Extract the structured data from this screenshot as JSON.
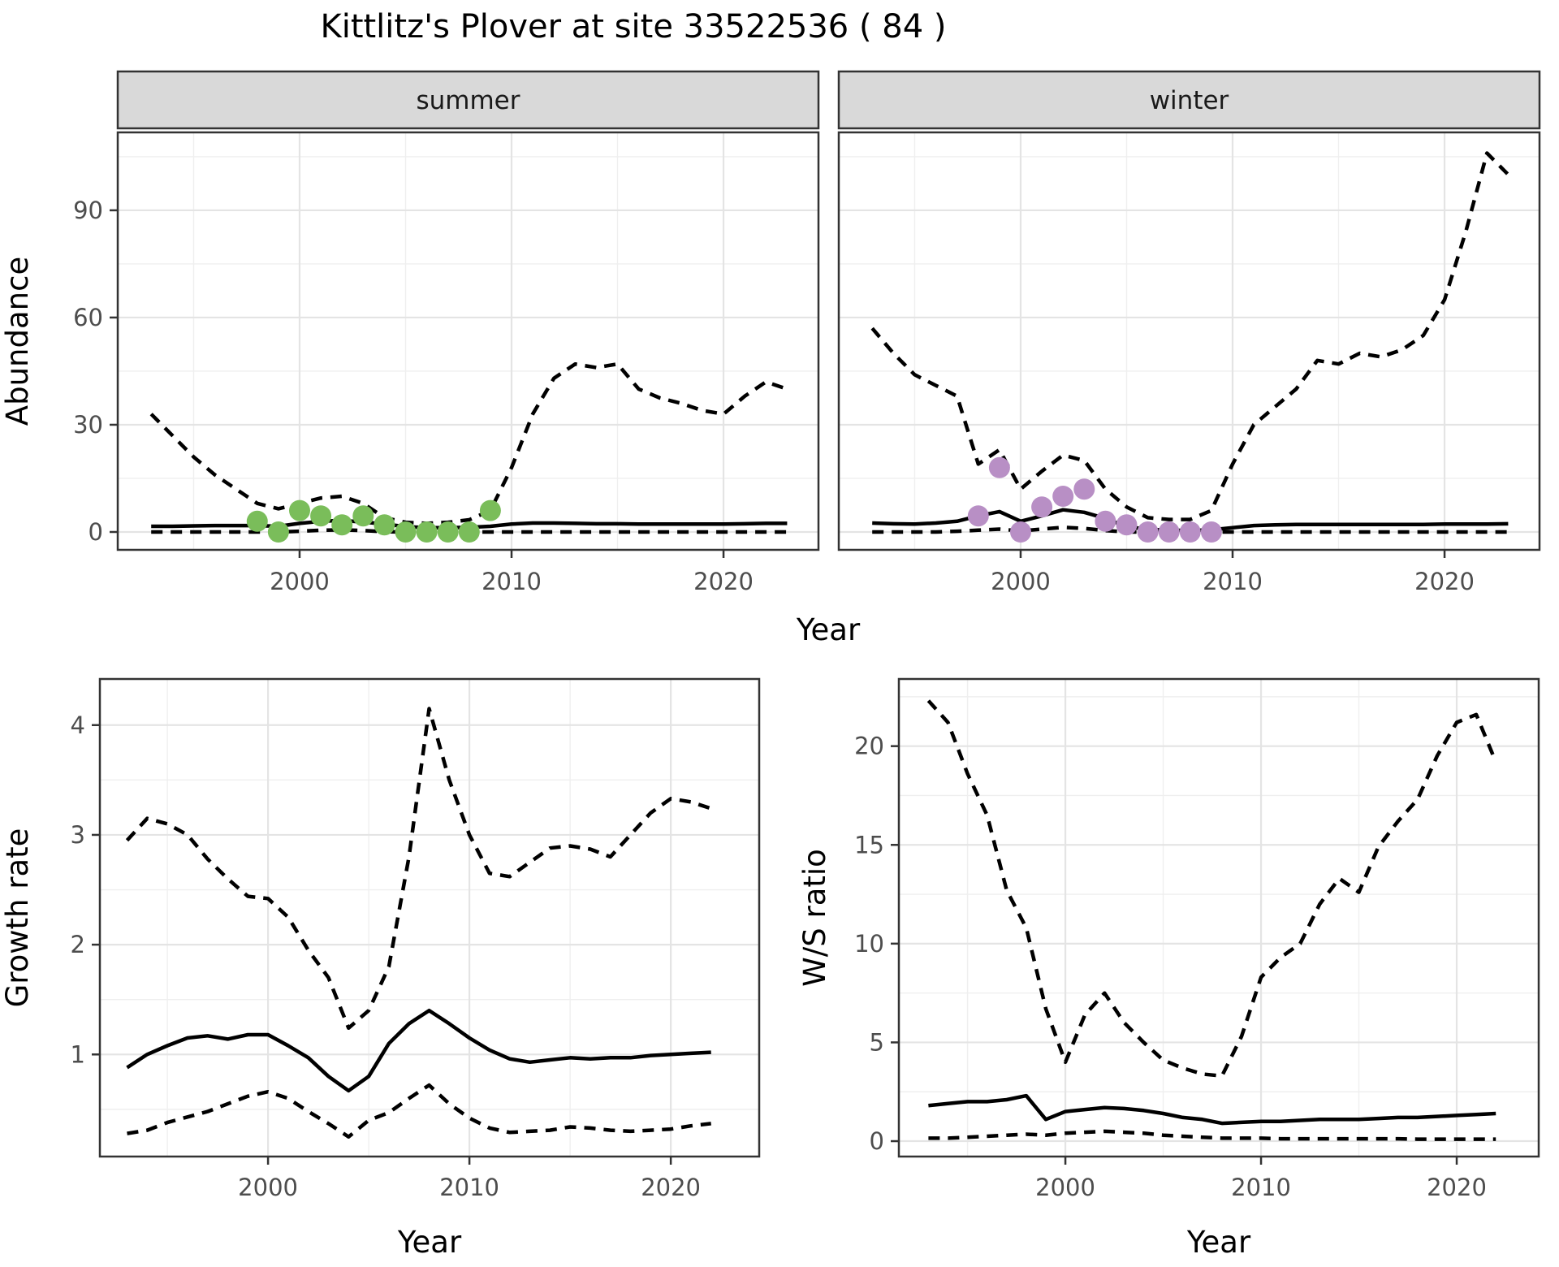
{
  "title": "Kittlitz's Plover at site 33522536 ( 84 )",
  "axes": {
    "year_label": "Year",
    "abundance_label": "Abundance",
    "growth_label": "Growth rate",
    "ws_label": "W/S ratio"
  },
  "facets": {
    "summer": "summer",
    "winter": "winter"
  },
  "colors": {
    "summer_dot": "#7ABD5A",
    "winter_dot": "#B88FC5",
    "line": "#000000",
    "strip_bg": "#D9D9D9",
    "panel_border": "#333333",
    "grid_major": "#E4E4E4",
    "grid_minor": "#EFEFEF",
    "axis_text": "#4D4D4D",
    "background": "#FFFFFF"
  },
  "chart_data": [
    {
      "type": "line",
      "panel": "abundance-summer",
      "facet_label": "summer",
      "xlabel": "Year",
      "ylabel": "Abundance",
      "xlim": [
        1991.42,
        2024.48
      ],
      "ylim": [
        -5,
        111.8
      ],
      "x_ticks": [
        2000,
        2010,
        2020
      ],
      "x_minor": [
        1995,
        2005,
        2015
      ],
      "y_ticks": [
        0,
        30,
        60,
        90
      ],
      "y_minor": [
        15,
        45,
        75,
        105
      ],
      "y_ticks_visible": true,
      "x": [
        1993,
        1994,
        1995,
        1996,
        1997,
        1998,
        1999,
        2000,
        2001,
        2002,
        2003,
        2004,
        2005,
        2006,
        2007,
        2008,
        2009,
        2010,
        2011,
        2012,
        2013,
        2014,
        2015,
        2016,
        2017,
        2018,
        2019,
        2020,
        2021,
        2022,
        2023
      ],
      "series": [
        {
          "name": "upper_95ci",
          "style": "dashed",
          "values": [
            33,
            27,
            21,
            16,
            12,
            8,
            6.5,
            8,
            9.5,
            10,
            8,
            4,
            2.7,
            2.4,
            2.7,
            3.4,
            6,
            18,
            33,
            43,
            47,
            46,
            47,
            40,
            37.5,
            36,
            34,
            33,
            38,
            42,
            40
          ]
        },
        {
          "name": "median_estimate",
          "style": "solid",
          "values": [
            1.6,
            1.6,
            1.7,
            1.8,
            1.8,
            1.8,
            1.6,
            2.4,
            3.0,
            3.2,
            2.8,
            2.2,
            1.5,
            1.2,
            1.2,
            1.3,
            1.6,
            2.2,
            2.5,
            2.5,
            2.4,
            2.3,
            2.3,
            2.2,
            2.2,
            2.2,
            2.2,
            2.2,
            2.3,
            2.4,
            2.4
          ]
        },
        {
          "name": "lower_95ci",
          "style": "dashed",
          "values": [
            0,
            0,
            0,
            0,
            0,
            0,
            0,
            0.2,
            0.5,
            0.6,
            0.4,
            0.1,
            0,
            0,
            0,
            0,
            0,
            0,
            0,
            0,
            0,
            0,
            0,
            0,
            0,
            0,
            0,
            0,
            0,
            0,
            0
          ]
        }
      ],
      "points": {
        "name": "observed-count-summer",
        "color_key": "summer_dot",
        "x": [
          1998,
          1999,
          2000,
          2001,
          2002,
          2003,
          2004,
          2005,
          2006,
          2007,
          2008,
          2009
        ],
        "values": [
          3,
          0,
          6,
          4.5,
          2,
          4.5,
          2,
          0,
          0,
          0,
          0,
          6
        ]
      }
    },
    {
      "type": "line",
      "panel": "abundance-winter",
      "facet_label": "winter",
      "xlabel": "Year",
      "ylabel": "Abundance",
      "xlim": [
        1991.42,
        2024.48
      ],
      "ylim": [
        -5,
        111.8
      ],
      "x_ticks": [
        2000,
        2010,
        2020
      ],
      "x_minor": [
        1995,
        2005,
        2015
      ],
      "y_ticks": [
        0,
        30,
        60,
        90
      ],
      "y_minor": [
        15,
        45,
        75,
        105
      ],
      "y_ticks_visible": false,
      "x": [
        1993,
        1994,
        1995,
        1996,
        1997,
        1998,
        1999,
        2000,
        2001,
        2002,
        2003,
        2004,
        2005,
        2006,
        2007,
        2008,
        2009,
        2010,
        2011,
        2012,
        2013,
        2014,
        2015,
        2016,
        2017,
        2018,
        2019,
        2020,
        2021,
        2022,
        2023
      ],
      "series": [
        {
          "name": "upper_95ci",
          "style": "dashed",
          "values": [
            57,
            50,
            44,
            41,
            38,
            19,
            23,
            12,
            17,
            21.5,
            20,
            12,
            7,
            4,
            3.5,
            3.5,
            6,
            19,
            30,
            35,
            40,
            48,
            47,
            50,
            49,
            51,
            55,
            65,
            84,
            106,
            100
          ]
        },
        {
          "name": "median_estimate",
          "style": "solid",
          "values": [
            2.5,
            2.3,
            2.2,
            2.5,
            3.0,
            4.5,
            5.7,
            3.0,
            4.5,
            6.2,
            5.5,
            3.8,
            1.5,
            0.7,
            0.5,
            0.4,
            0.6,
            1.2,
            1.8,
            2.0,
            2.1,
            2.1,
            2.1,
            2.1,
            2.1,
            2.1,
            2.1,
            2.2,
            2.2,
            2.2,
            2.3
          ]
        },
        {
          "name": "lower_95ci",
          "style": "dashed",
          "values": [
            0,
            0,
            0,
            0,
            0.2,
            0.5,
            0.8,
            0.3,
            0.8,
            1.3,
            1.0,
            0.4,
            0,
            0,
            0,
            0,
            0,
            0,
            0,
            0,
            0,
            0,
            0,
            0,
            0,
            0,
            0,
            0,
            0,
            0,
            0
          ]
        }
      ],
      "points": {
        "name": "observed-count-winter",
        "color_key": "winter_dot",
        "x": [
          1998,
          1999,
          2000,
          2001,
          2002,
          2003,
          2004,
          2005,
          2006,
          2007,
          2008,
          2009
        ],
        "values": [
          4.5,
          18,
          0,
          7,
          10,
          12,
          3,
          2,
          0,
          0,
          0,
          0
        ]
      }
    },
    {
      "type": "line",
      "panel": "growth-rate",
      "facet_label": "",
      "xlabel": "Year",
      "ylabel": "Growth rate",
      "xlim": [
        1991.65,
        2024.39
      ],
      "ylim": [
        0.07,
        4.42
      ],
      "x_ticks": [
        2000,
        2010,
        2020
      ],
      "x_minor": [
        1995,
        2005,
        2015
      ],
      "y_ticks": [
        1,
        2,
        3,
        4
      ],
      "y_minor": [
        0.5,
        1.5,
        2.5,
        3.5
      ],
      "y_ticks_visible": true,
      "x": [
        1993,
        1994,
        1995,
        1996,
        1997,
        1998,
        1999,
        2000,
        2001,
        2002,
        2003,
        2004,
        2005,
        2006,
        2007,
        2008,
        2009,
        2010,
        2011,
        2012,
        2013,
        2014,
        2015,
        2016,
        2017,
        2018,
        2019,
        2020,
        2021,
        2022
      ],
      "series": [
        {
          "name": "upper_95ci",
          "style": "dashed",
          "values": [
            2.95,
            3.15,
            3.1,
            3.0,
            2.78,
            2.6,
            2.44,
            2.42,
            2.25,
            1.95,
            1.7,
            1.24,
            1.4,
            1.8,
            2.8,
            4.15,
            3.5,
            3.0,
            2.65,
            2.62,
            2.75,
            2.88,
            2.9,
            2.87,
            2.8,
            3.0,
            3.2,
            3.33,
            3.3,
            3.24
          ]
        },
        {
          "name": "median_estimate",
          "style": "solid",
          "values": [
            0.88,
            1.0,
            1.08,
            1.15,
            1.17,
            1.14,
            1.18,
            1.18,
            1.08,
            0.97,
            0.8,
            0.67,
            0.8,
            1.1,
            1.28,
            1.4,
            1.28,
            1.15,
            1.04,
            0.96,
            0.93,
            0.95,
            0.97,
            0.96,
            0.97,
            0.97,
            0.99,
            1.0,
            1.01,
            1.02
          ]
        },
        {
          "name": "lower_95ci",
          "style": "dashed",
          "values": [
            0.28,
            0.31,
            0.38,
            0.43,
            0.48,
            0.55,
            0.62,
            0.66,
            0.6,
            0.48,
            0.37,
            0.25,
            0.4,
            0.47,
            0.6,
            0.72,
            0.55,
            0.42,
            0.33,
            0.29,
            0.3,
            0.31,
            0.34,
            0.33,
            0.31,
            0.3,
            0.31,
            0.32,
            0.35,
            0.37
          ]
        }
      ],
      "points": null
    },
    {
      "type": "line",
      "panel": "ws-ratio",
      "facet_label": "",
      "xlabel": "Year",
      "ylabel": "W/S ratio",
      "xlim": [
        1991.49,
        2024.19
      ],
      "ylim": [
        -0.78,
        23.4
      ],
      "x_ticks": [
        2000,
        2010,
        2020
      ],
      "x_minor": [
        1995,
        2005,
        2015
      ],
      "y_ticks": [
        0,
        5,
        10,
        15,
        20
      ],
      "y_minor": [
        2.5,
        7.5,
        12.5,
        17.5,
        22.5
      ],
      "y_ticks_visible": true,
      "x": [
        1993,
        1994,
        1995,
        1996,
        1997,
        1998,
        1999,
        2000,
        2001,
        2002,
        2003,
        2004,
        2005,
        2006,
        2007,
        2008,
        2009,
        2010,
        2011,
        2012,
        2013,
        2014,
        2015,
        2016,
        2017,
        2018,
        2019,
        2020,
        2021,
        2022
      ],
      "series": [
        {
          "name": "upper_95ci",
          "style": "dashed",
          "values": [
            22.3,
            21.2,
            18.6,
            16.5,
            12.7,
            10.8,
            6.7,
            4.0,
            6.4,
            7.5,
            6.0,
            5.0,
            4.1,
            3.7,
            3.4,
            3.3,
            5.3,
            8.3,
            9.3,
            10.0,
            12.0,
            13.3,
            12.6,
            14.9,
            16.2,
            17.3,
            19.5,
            21.2,
            21.6,
            19.2
          ]
        },
        {
          "name": "median_estimate",
          "style": "solid",
          "values": [
            1.8,
            1.9,
            2.0,
            2.0,
            2.1,
            2.3,
            1.1,
            1.5,
            1.6,
            1.7,
            1.65,
            1.55,
            1.4,
            1.2,
            1.1,
            0.9,
            0.95,
            1.0,
            1.0,
            1.05,
            1.1,
            1.1,
            1.1,
            1.15,
            1.2,
            1.2,
            1.25,
            1.3,
            1.35,
            1.4
          ]
        },
        {
          "name": "lower_95ci",
          "style": "dashed",
          "values": [
            0.15,
            0.15,
            0.2,
            0.25,
            0.3,
            0.35,
            0.3,
            0.4,
            0.45,
            0.5,
            0.45,
            0.4,
            0.3,
            0.25,
            0.2,
            0.15,
            0.15,
            0.15,
            0.12,
            0.12,
            0.12,
            0.12,
            0.12,
            0.12,
            0.12,
            0.1,
            0.1,
            0.1,
            0.1,
            0.1
          ]
        }
      ],
      "points": null
    }
  ]
}
